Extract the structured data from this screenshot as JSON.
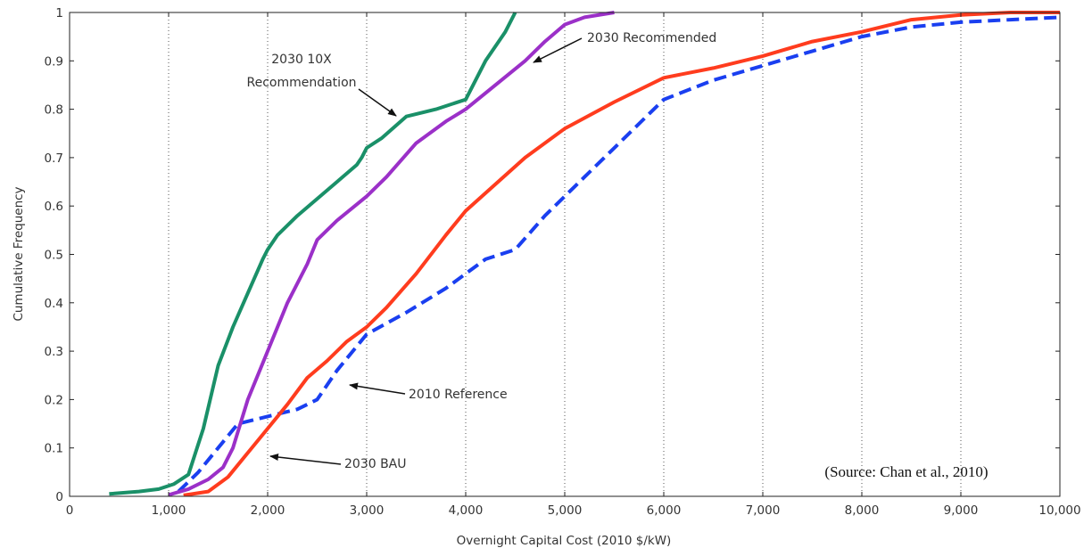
{
  "chart_data": {
    "type": "line",
    "xlabel": "Overnight Capital Cost (2010 $/kW)",
    "ylabel": "Cumulative Frequency",
    "xlim": [
      0,
      10000
    ],
    "ylim": [
      0,
      1
    ],
    "x_ticks": [
      0,
      1000,
      2000,
      3000,
      4000,
      5000,
      6000,
      7000,
      8000,
      9000,
      10000
    ],
    "x_tick_labels": [
      "0",
      "1,000",
      "2,000",
      "3,000",
      "4,000",
      "5,000",
      "6,000",
      "7,000",
      "8,000",
      "9,000",
      "10,000"
    ],
    "y_ticks": [
      0,
      0.1,
      0.2,
      0.3,
      0.4,
      0.5,
      0.6,
      0.7,
      0.8,
      0.9,
      1
    ],
    "y_tick_labels": [
      "0",
      "0.1",
      "0.2",
      "0.3",
      "0.4",
      "0.5",
      "0.6",
      "0.7",
      "0.8",
      "0.9",
      "1"
    ],
    "grid": "vertical dotted",
    "series": [
      {
        "name": "2030 10X Recommendation",
        "color": "#1a9068",
        "style": "solid",
        "x": [
          400,
          700,
          900,
          1050,
          1200,
          1350,
          1500,
          1650,
          1800,
          1950,
          2000,
          2100,
          2300,
          2500,
          2700,
          2900,
          2950,
          3000,
          3150,
          3400,
          3700,
          4000,
          4200,
          4400,
          4500
        ],
        "y": [
          0.005,
          0.01,
          0.015,
          0.025,
          0.045,
          0.14,
          0.27,
          0.35,
          0.42,
          0.49,
          0.51,
          0.54,
          0.58,
          0.615,
          0.65,
          0.685,
          0.7,
          0.72,
          0.74,
          0.785,
          0.8,
          0.82,
          0.9,
          0.96,
          1
        ]
      },
      {
        "name": "2030 Recommended",
        "color": "#9b30c8",
        "style": "solid",
        "x": [
          1000,
          1200,
          1400,
          1550,
          1650,
          1800,
          2000,
          2200,
          2400,
          2500,
          2700,
          3000,
          3200,
          3500,
          3800,
          4000,
          4300,
          4600,
          4800,
          5000,
          5200,
          5500
        ],
        "y": [
          0.003,
          0.015,
          0.035,
          0.06,
          0.1,
          0.2,
          0.3,
          0.4,
          0.48,
          0.53,
          0.57,
          0.62,
          0.66,
          0.73,
          0.775,
          0.8,
          0.85,
          0.9,
          0.94,
          0.975,
          0.99,
          1
        ]
      },
      {
        "name": "2030 BAU",
        "color": "#ff3c1e",
        "style": "solid",
        "x": [
          1150,
          1400,
          1600,
          1800,
          2000,
          2200,
          2400,
          2600,
          2800,
          3000,
          3200,
          3500,
          3800,
          4000,
          4300,
          4600,
          5000,
          5500,
          6000,
          6500,
          7000,
          7500,
          8000,
          8500,
          9000,
          9500,
          10000
        ],
        "y": [
          0.002,
          0.01,
          0.04,
          0.09,
          0.14,
          0.19,
          0.245,
          0.28,
          0.32,
          0.35,
          0.39,
          0.46,
          0.54,
          0.59,
          0.645,
          0.7,
          0.76,
          0.815,
          0.865,
          0.885,
          0.91,
          0.94,
          0.96,
          0.985,
          0.995,
          1,
          1
        ]
      },
      {
        "name": "2010 Reference",
        "color": "#1a3ff0",
        "style": "dashed",
        "x": [
          1100,
          1300,
          1500,
          1700,
          1900,
          2100,
          2300,
          2500,
          2700,
          3000,
          3400,
          3800,
          4200,
          4500,
          4800,
          5200,
          5600,
          6000,
          6500,
          7000,
          7500,
          8000,
          8500,
          9000,
          9500,
          10000
        ],
        "y": [
          0.01,
          0.05,
          0.1,
          0.15,
          0.16,
          0.17,
          0.18,
          0.2,
          0.26,
          0.335,
          0.38,
          0.43,
          0.49,
          0.51,
          0.58,
          0.66,
          0.74,
          0.82,
          0.86,
          0.89,
          0.92,
          0.95,
          0.97,
          0.98,
          0.985,
          0.99
        ]
      }
    ],
    "annotations": [
      {
        "text": "2030 10X",
        "series": "2030 10X Recommendation"
      },
      {
        "text": "Recommendation",
        "series": "2030 10X Recommendation"
      },
      {
        "text": "2030 Recommended",
        "series": "2030 Recommended"
      },
      {
        "text": "2010 Reference",
        "series": "2010 Reference"
      },
      {
        "text": "2030 BAU",
        "series": "2030 BAU"
      }
    ],
    "source_note": "(Source: Chan et al., 2010)"
  }
}
